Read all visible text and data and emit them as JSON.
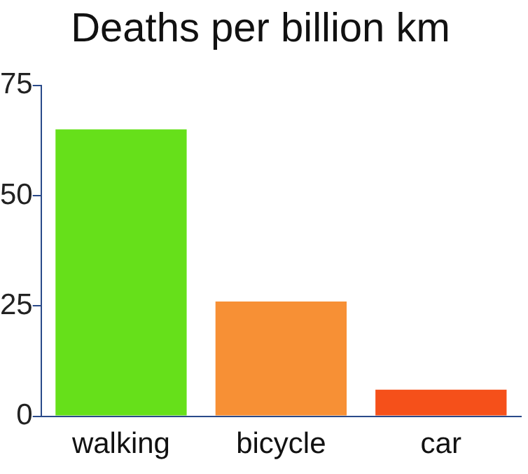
{
  "chart_data": {
    "type": "bar",
    "title": "Deaths per billion km",
    "categories": [
      "walking",
      "bicycle",
      "car"
    ],
    "values": [
      65,
      26,
      6
    ],
    "colors": [
      "#66e01a",
      "#f79035",
      "#f5501a"
    ],
    "ylim": [
      0,
      75
    ],
    "yticks": [
      0,
      25,
      50,
      75
    ],
    "grid": false,
    "legend": false
  }
}
